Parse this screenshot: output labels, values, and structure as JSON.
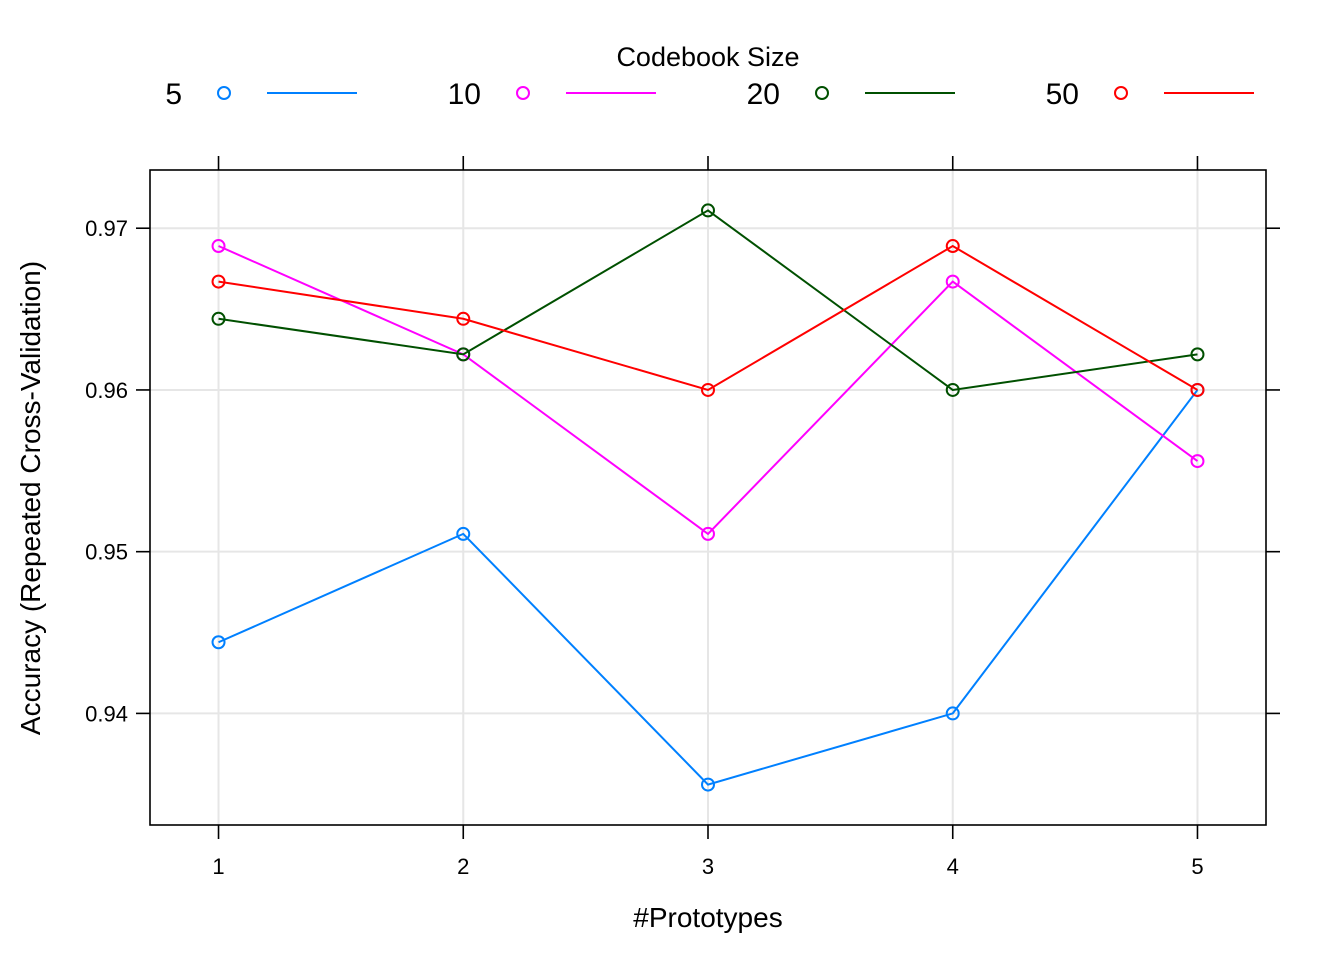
{
  "chart_data": {
    "type": "line",
    "legend": {
      "title": "Codebook Size",
      "placement": "top"
    },
    "xlabel": "#Prototypes",
    "ylabel": "Accuracy (Repeated Cross-Validation)",
    "x": [
      1,
      2,
      3,
      4,
      5
    ],
    "x_tick_labels": [
      "1",
      "2",
      "3",
      "4",
      "5"
    ],
    "xlim": [
      0.72,
      5.28
    ],
    "y_ticks": [
      0.94,
      0.95,
      0.96,
      0.97
    ],
    "y_tick_labels": [
      "0.94",
      "0.95",
      "0.96",
      "0.97"
    ],
    "ylim": [
      0.9331,
      0.9736
    ],
    "grid": true,
    "series": [
      {
        "name": "5",
        "color": "#0080ff",
        "values": [
          0.9444,
          0.9511,
          0.9356,
          0.94,
          0.96
        ]
      },
      {
        "name": "10",
        "color": "#ff00ff",
        "values": [
          0.9689,
          0.9622,
          0.9511,
          0.9667,
          0.9556
        ]
      },
      {
        "name": "20",
        "color": "#005000",
        "values": [
          0.9644,
          0.9622,
          0.9711,
          0.96,
          0.9622
        ]
      },
      {
        "name": "50",
        "color": "#ff0000",
        "values": [
          0.9667,
          0.9644,
          0.96,
          0.9689,
          0.96
        ]
      }
    ]
  }
}
